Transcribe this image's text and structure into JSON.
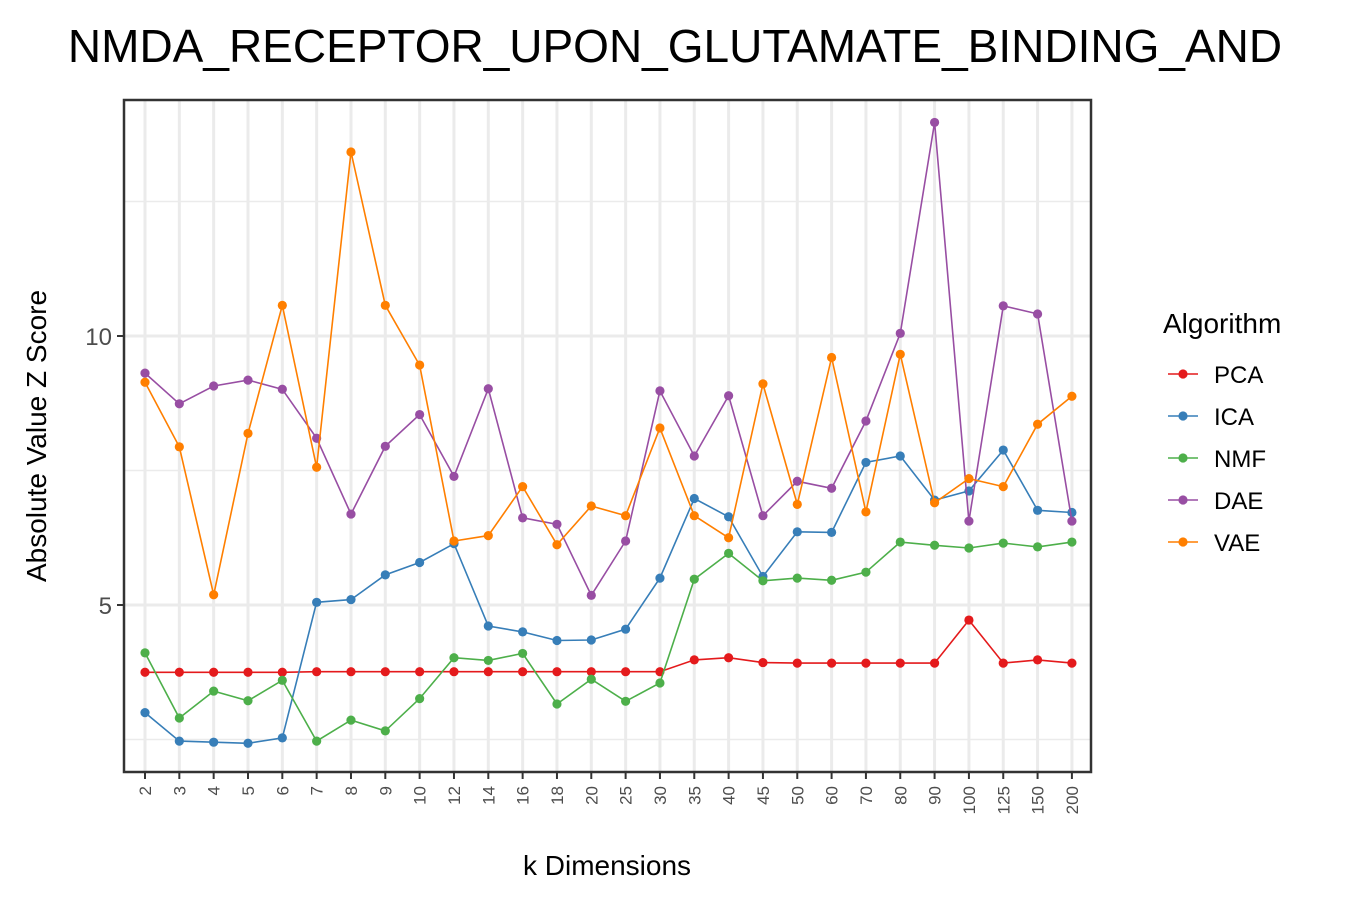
{
  "chart_data": {
    "type": "line",
    "title": "NMDA_RECEPTOR_UPON_GLUTAMATE_BINDING_AND",
    "xlabel": "k Dimensions",
    "ylabel": "Absolute Value Z Score",
    "categories": [
      "2",
      "3",
      "4",
      "5",
      "6",
      "7",
      "8",
      "9",
      "10",
      "12",
      "14",
      "16",
      "18",
      "20",
      "25",
      "30",
      "35",
      "40",
      "45",
      "50",
      "60",
      "70",
      "80",
      "90",
      "100",
      "125",
      "150",
      "200"
    ],
    "ylim": [
      1.9,
      14.6
    ],
    "yticks": [
      5,
      10
    ],
    "ytick_labels": [
      "5",
      "10"
    ],
    "grid": true,
    "legend": {
      "title": "Algorithm",
      "position": "right"
    },
    "series": [
      {
        "name": "PCA",
        "color": "#E41A1C",
        "values": [
          3.75,
          3.75,
          3.75,
          3.75,
          3.75,
          3.76,
          3.76,
          3.76,
          3.76,
          3.76,
          3.76,
          3.76,
          3.76,
          3.76,
          3.76,
          3.76,
          3.98,
          4.02,
          3.93,
          3.92,
          3.92,
          3.92,
          3.92,
          3.92,
          4.72,
          3.92,
          3.98,
          3.92
        ]
      },
      {
        "name": "ICA",
        "color": "#377EB8",
        "values": [
          3.0,
          2.47,
          2.45,
          2.43,
          2.53,
          5.05,
          5.1,
          5.56,
          5.79,
          6.14,
          4.61,
          4.5,
          4.34,
          4.35,
          4.55,
          5.5,
          6.98,
          6.64,
          5.53,
          6.36,
          6.35,
          7.65,
          7.77,
          6.95,
          7.12,
          7.88,
          6.76,
          6.72
        ]
      },
      {
        "name": "NMF",
        "color": "#4DAF4A",
        "values": [
          4.11,
          2.9,
          3.4,
          3.22,
          3.6,
          2.47,
          2.86,
          2.66,
          3.26,
          4.02,
          3.97,
          4.1,
          3.16,
          3.62,
          3.21,
          3.55,
          5.48,
          5.96,
          5.45,
          5.5,
          5.46,
          5.61,
          6.17,
          6.11,
          6.06,
          6.15,
          6.08,
          6.17
        ]
      },
      {
        "name": "DAE",
        "color": "#984EA3",
        "values": [
          9.31,
          8.74,
          9.07,
          9.18,
          9.01,
          8.1,
          6.69,
          7.95,
          8.54,
          7.39,
          9.02,
          6.62,
          6.5,
          5.18,
          6.19,
          8.98,
          7.77,
          8.89,
          6.66,
          7.3,
          7.17,
          8.42,
          10.05,
          13.97,
          6.56,
          10.56,
          10.41,
          6.56
        ]
      },
      {
        "name": "VAE",
        "color": "#FF7F00",
        "values": [
          9.14,
          7.94,
          5.19,
          8.19,
          10.57,
          7.56,
          13.42,
          10.57,
          9.46,
          6.19,
          6.29,
          7.2,
          6.12,
          6.84,
          6.66,
          8.29,
          6.66,
          6.25,
          9.11,
          6.87,
          9.6,
          6.73,
          9.66,
          6.9,
          7.35,
          7.2,
          8.36,
          8.88
        ]
      }
    ]
  }
}
